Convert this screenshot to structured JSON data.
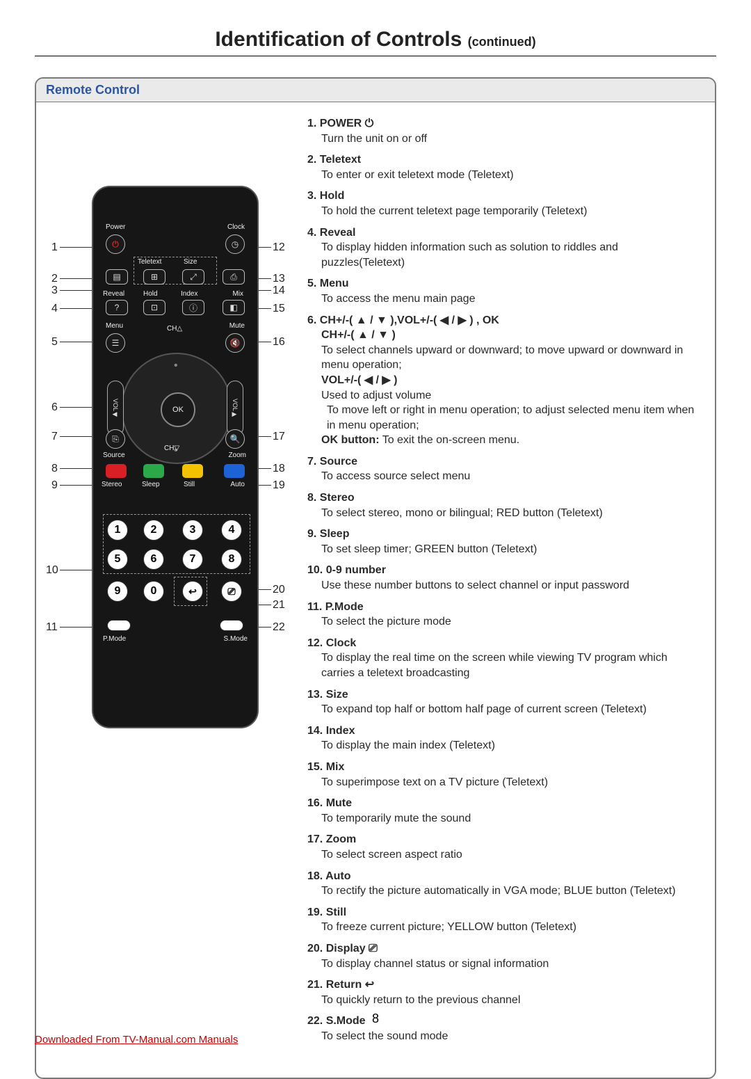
{
  "page": {
    "title_main": "Identification of Controls",
    "title_cont": "(continued)",
    "section_header": "Remote Control",
    "page_number": "8",
    "footer_link": "Downloaded From TV-Manual.com Manuals"
  },
  "remote_labels": {
    "power": "Power",
    "clock": "Clock",
    "teletext": "Teletext",
    "size": "Size",
    "reveal": "Reveal",
    "hold": "Hold",
    "index": "Index",
    "mix": "Mix",
    "menu": "Menu",
    "ch_up": "CH",
    "mute": "Mute",
    "vol_left": "VOL",
    "vol_right": "VOL",
    "ok": "OK",
    "ch_down": "CH",
    "source": "Source",
    "zoom": "Zoom",
    "stereo": "Stereo",
    "sleep": "Sleep",
    "still": "Still",
    "auto": "Auto",
    "pmode": "P.Mode",
    "smode": "S.Mode"
  },
  "callouts_left": [
    "1",
    "2",
    "3",
    "4",
    "5",
    "6",
    "7",
    "8",
    "9",
    "10",
    "11"
  ],
  "callouts_right": [
    "12",
    "13",
    "14",
    "15",
    "16",
    "17",
    "18",
    "19",
    "20",
    "21",
    "22"
  ],
  "items": [
    {
      "num": "1.",
      "title": "POWER",
      "icon": "⏻",
      "desc": "Turn the unit on or off"
    },
    {
      "num": "2.",
      "title": "Teletext",
      "desc": "To enter or exit teletext mode (Teletext)"
    },
    {
      "num": "3.",
      "title": "Hold",
      "desc": "To hold the current teletext page temporarily (Teletext)"
    },
    {
      "num": "4.",
      "title": "Reveal",
      "desc": "To display hidden information such as solution to riddles and puzzles(Teletext)"
    },
    {
      "num": "5.",
      "title": "Menu",
      "desc": "To access the menu main page"
    },
    {
      "num": "6.",
      "title": "CH+/-( ▲ / ▼ ),VOL+/-( ◀ / ▶ ) , OK",
      "subs": [
        {
          "bold": "CH+/-( ▲ / ▼ )",
          "desc": "To select channels upward or downward; to move upward or downward in menu operation;"
        },
        {
          "bold": "VOL+/-( ◀ / ▶ )",
          "desc": "Used to adjust volume",
          "desc2": "To move left or right in menu operation; to adjust selected menu item when in menu operation;"
        },
        {
          "bold": "OK button:",
          "inline": " To exit the on-screen menu."
        }
      ]
    },
    {
      "num": "7.",
      "title": "Source",
      "desc": "To access source select menu"
    },
    {
      "num": "8.",
      "title": "Stereo",
      "desc": "To select stereo, mono or bilingual; RED button (Teletext)"
    },
    {
      "num": "9.",
      "title": "Sleep",
      "desc": "To set sleep timer; GREEN button (Teletext)"
    },
    {
      "num": "10.",
      "title": "0-9 number",
      "desc": "Use these number buttons to select channel or input password"
    },
    {
      "num": "11.",
      "title": "P.Mode",
      "desc": "To select the picture mode"
    },
    {
      "num": "12.",
      "title": "Clock",
      "desc": "To display the real time on the screen while viewing TV program which carries a teletext broadcasting"
    },
    {
      "num": "13.",
      "title": "Size",
      "desc": "To expand top half or bottom half page of current screen (Teletext)"
    },
    {
      "num": "14.",
      "title": "Index",
      "desc": "To display the main index (Teletext)"
    },
    {
      "num": "15.",
      "title": "Mix",
      "desc": "To superimpose text on a TV picture (Teletext)"
    },
    {
      "num": "16.",
      "title": "Mute",
      "desc": "To temporarily mute the sound"
    },
    {
      "num": "17.",
      "title": "Zoom",
      "desc": "To select screen aspect ratio"
    },
    {
      "num": "18.",
      "title": "Auto",
      "desc": "To rectify the picture automatically in VGA mode; BLUE button (Teletext)"
    },
    {
      "num": "19.",
      "title": "Still",
      "desc": "To freeze current picture; YELLOW button (Teletext)"
    },
    {
      "num": "20.",
      "title": " Display",
      "icon": "⎚",
      "desc": "To display channel status or signal information"
    },
    {
      "num": "21.",
      "title": " Return",
      "icon": "↩",
      "desc": "To quickly return to the previous channel"
    },
    {
      "num": "22.",
      "title": "S.Mode",
      "desc": "To select the sound mode"
    }
  ],
  "colors": {
    "header_bg": "#eaeaea",
    "header_text": "#2b56a5",
    "border": "#7a7a7a",
    "red_btn": "#d81f26",
    "green_btn": "#2aa84a",
    "yellow_btn": "#f2c200",
    "blue_btn": "#1e63d6",
    "power_red": "#d81f26",
    "link_color": "#c00000"
  }
}
